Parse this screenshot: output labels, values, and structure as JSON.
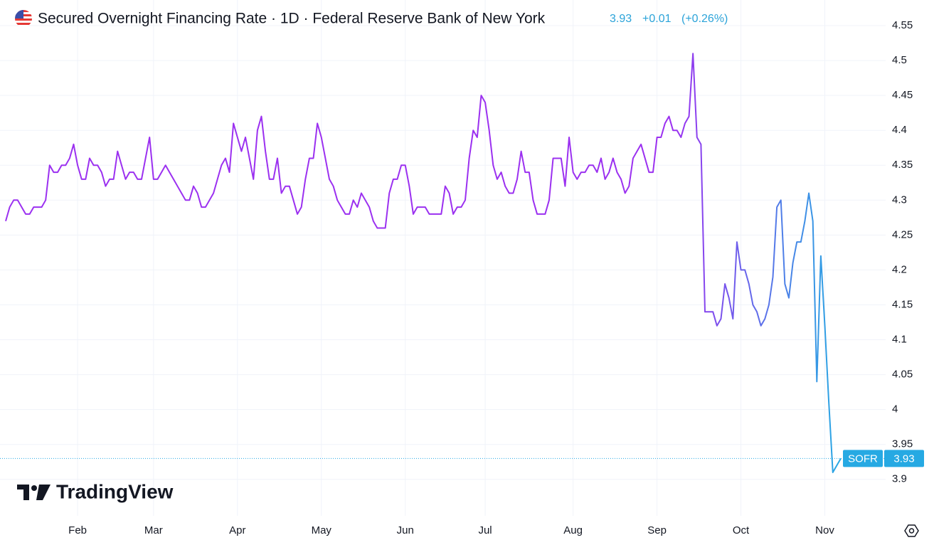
{
  "chart_data": {
    "type": "line",
    "title": "Secured Overnight Financing Rate · 1D · Federal Reserve Bank of New York",
    "header_change": "+0.01",
    "header_change_pct": "(+0.26%)",
    "watermark": "TradingView",
    "categories": [
      null,
      null,
      null,
      null,
      null,
      null,
      null,
      null,
      null,
      null,
      null,
      null,
      null,
      null,
      null,
      null,
      null,
      null,
      "Feb",
      null,
      null,
      null,
      null,
      null,
      null,
      null,
      null,
      null,
      null,
      null,
      null,
      null,
      null,
      null,
      null,
      null,
      null,
      "Mar",
      null,
      null,
      null,
      null,
      null,
      null,
      null,
      null,
      null,
      null,
      null,
      null,
      null,
      null,
      null,
      null,
      null,
      null,
      null,
      null,
      "Apr",
      null,
      null,
      null,
      null,
      null,
      null,
      null,
      null,
      null,
      null,
      null,
      null,
      null,
      null,
      null,
      null,
      null,
      null,
      null,
      null,
      "May",
      null,
      null,
      null,
      null,
      null,
      null,
      null,
      null,
      null,
      null,
      null,
      null,
      null,
      null,
      null,
      null,
      null,
      null,
      null,
      null,
      "Jun",
      null,
      null,
      null,
      null,
      null,
      null,
      null,
      null,
      null,
      null,
      null,
      null,
      null,
      null,
      null,
      null,
      null,
      null,
      null,
      "Jul",
      null,
      null,
      null,
      null,
      null,
      null,
      null,
      null,
      null,
      null,
      null,
      null,
      null,
      null,
      null,
      null,
      null,
      null,
      null,
      null,
      null,
      "Aug",
      null,
      null,
      null,
      null,
      null,
      null,
      null,
      null,
      null,
      null,
      null,
      null,
      null,
      null,
      null,
      null,
      null,
      null,
      null,
      null,
      "Sep",
      null,
      null,
      null,
      null,
      null,
      null,
      null,
      null,
      null,
      null,
      null,
      null,
      null,
      null,
      null,
      null,
      null,
      null,
      null,
      null,
      "Oct",
      null,
      null,
      null,
      null,
      null,
      null,
      null,
      null,
      null,
      null,
      null,
      null,
      null,
      null,
      null,
      null,
      null,
      null,
      null,
      null,
      "Nov",
      null,
      null,
      null,
      null
    ],
    "series": [
      {
        "name": "SOFR",
        "color": "#9b30f0",
        "end_color": "#26a9e3",
        "values": [
          4.27,
          4.29,
          4.3,
          4.3,
          4.29,
          4.28,
          4.28,
          4.29,
          4.29,
          4.29,
          4.3,
          4.35,
          4.34,
          4.34,
          4.35,
          4.35,
          4.36,
          4.38,
          4.35,
          4.33,
          4.33,
          4.36,
          4.35,
          4.35,
          4.34,
          4.32,
          4.33,
          4.33,
          4.37,
          4.35,
          4.33,
          4.34,
          4.34,
          4.33,
          4.33,
          4.36,
          4.39,
          4.33,
          4.33,
          4.34,
          4.35,
          4.34,
          4.33,
          4.32,
          4.31,
          4.3,
          4.3,
          4.32,
          4.31,
          4.29,
          4.29,
          4.3,
          4.31,
          4.33,
          4.35,
          4.36,
          4.34,
          4.41,
          4.39,
          4.37,
          4.39,
          4.36,
          4.33,
          4.4,
          4.42,
          4.37,
          4.33,
          4.33,
          4.36,
          4.31,
          4.32,
          4.32,
          4.3,
          4.28,
          4.29,
          4.33,
          4.36,
          4.36,
          4.41,
          4.39,
          4.36,
          4.33,
          4.32,
          4.3,
          4.29,
          4.28,
          4.28,
          4.3,
          4.29,
          4.31,
          4.3,
          4.29,
          4.27,
          4.26,
          4.26,
          4.26,
          4.31,
          4.33,
          4.33,
          4.35,
          4.35,
          4.32,
          4.28,
          4.29,
          4.29,
          4.29,
          4.28,
          4.28,
          4.28,
          4.28,
          4.32,
          4.31,
          4.28,
          4.29,
          4.29,
          4.3,
          4.36,
          4.4,
          4.39,
          4.45,
          4.44,
          4.4,
          4.35,
          4.33,
          4.34,
          4.32,
          4.31,
          4.31,
          4.33,
          4.37,
          4.34,
          4.34,
          4.3,
          4.28,
          4.28,
          4.28,
          4.3,
          4.36,
          4.36,
          4.36,
          4.32,
          4.39,
          4.34,
          4.33,
          4.34,
          4.34,
          4.35,
          4.35,
          4.34,
          4.36,
          4.33,
          4.34,
          4.36,
          4.34,
          4.33,
          4.31,
          4.32,
          4.36,
          4.37,
          4.38,
          4.36,
          4.34,
          4.34,
          4.39,
          4.39,
          4.41,
          4.42,
          4.4,
          4.4,
          4.39,
          4.41,
          4.42,
          4.51,
          4.39,
          4.38,
          4.14,
          4.14,
          4.14,
          4.12,
          4.13,
          4.18,
          4.16,
          4.13,
          4.24,
          4.2,
          4.2,
          4.18,
          4.15,
          4.14,
          4.12,
          4.13,
          4.15,
          4.19,
          4.29,
          4.3,
          4.18,
          4.16,
          4.21,
          4.24,
          4.24,
          4.27,
          4.31,
          4.27,
          4.04,
          4.22,
          4.12,
          4.01,
          3.91,
          3.92,
          3.93
        ]
      }
    ],
    "ylim": [
      3.86,
      4.58
    ],
    "yticks": [
      3.9,
      3.95,
      4,
      4.05,
      4.1,
      4.15,
      4.2,
      4.25,
      4.3,
      4.35,
      4.4,
      4.45,
      4.5,
      4.55
    ],
    "grid": true
  }
}
